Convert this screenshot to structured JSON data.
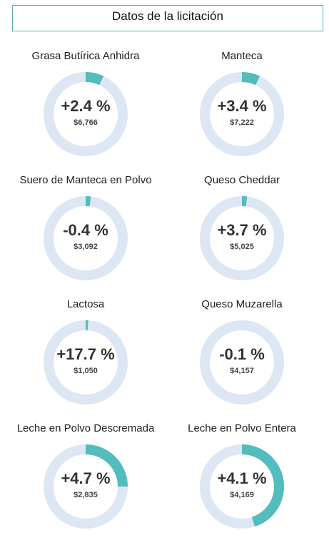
{
  "header": {
    "title": "Datos de la licitación"
  },
  "colors": {
    "accent": "#53bcbc",
    "track": "#dce7f3",
    "border": "#5aaeb3"
  },
  "chart_data": {
    "type": "pie",
    "title": "",
    "items": [
      {
        "name": "Grasa Butírica Anhidra",
        "change_label": "+2.4 %",
        "price_label": "$6,766",
        "fill_fraction": 0.07
      },
      {
        "name": "Manteca",
        "change_label": "+3.4 %",
        "price_label": "$7,222",
        "fill_fraction": 0.07
      },
      {
        "name": "Suero de Manteca en Polvo",
        "change_label": "-0.4 %",
        "price_label": "$3,092",
        "fill_fraction": 0.02
      },
      {
        "name": "Queso Cheddar",
        "change_label": "+3.7 %",
        "price_label": "$5,025",
        "fill_fraction": 0.02
      },
      {
        "name": "Lactosa",
        "change_label": "+17.7 %",
        "price_label": "$1,050",
        "fill_fraction": 0.01
      },
      {
        "name": "Queso Muzarella",
        "change_label": "-0.1 %",
        "price_label": "$4,157",
        "fill_fraction": 0.0
      },
      {
        "name": "Leche en Polvo Descremada",
        "change_label": "+4.7 %",
        "price_label": "$2,835",
        "fill_fraction": 0.25
      },
      {
        "name": "Leche en Polvo Entera",
        "change_label": "+4.1 %",
        "price_label": "$4,169",
        "fill_fraction": 0.45
      }
    ]
  }
}
